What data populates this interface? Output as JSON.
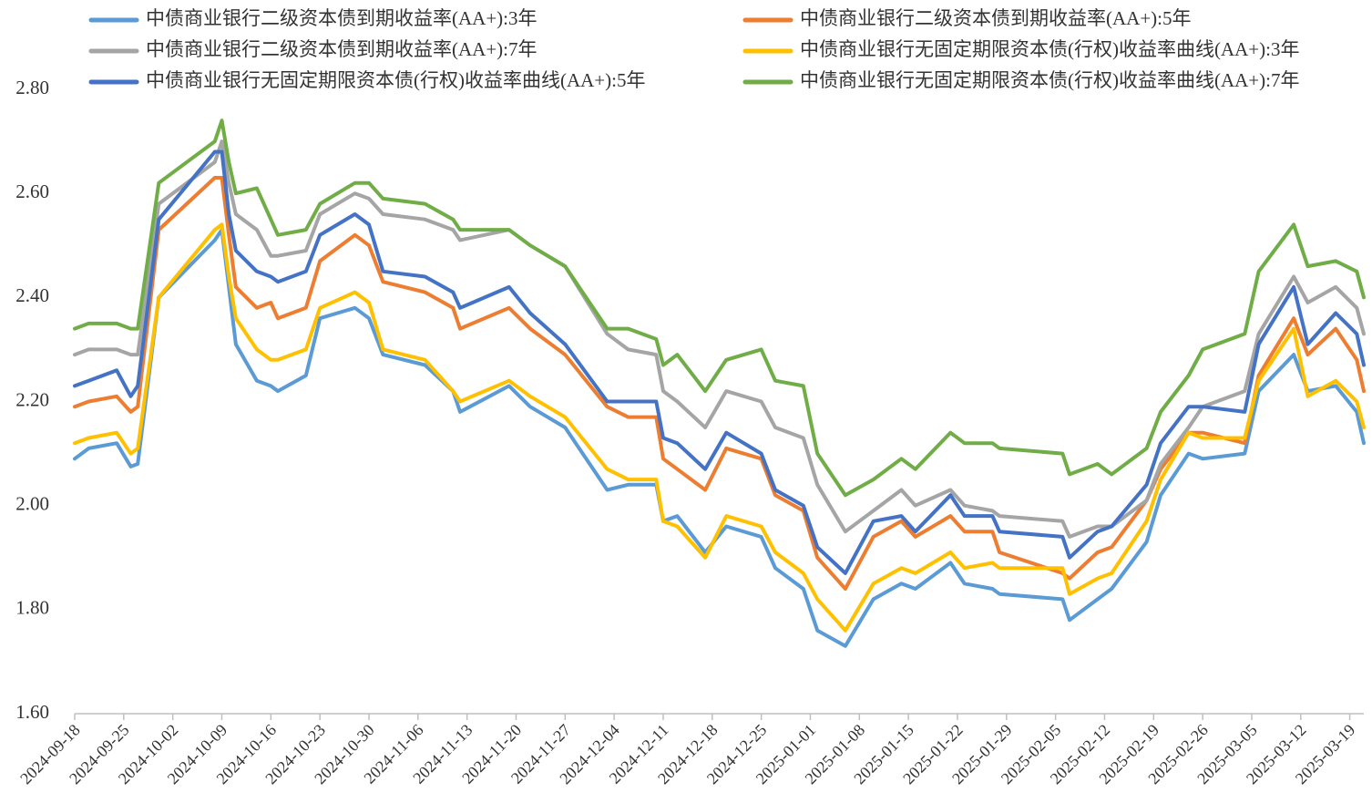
{
  "chart_data": {
    "type": "line",
    "x": [
      "2024-09-18",
      "2024-09-20",
      "2024-09-24",
      "2024-09-26",
      "2024-09-27",
      "2024-09-30",
      "2024-10-08",
      "2024-10-09",
      "2024-10-10",
      "2024-10-11",
      "2024-10-14",
      "2024-10-16",
      "2024-10-17",
      "2024-10-21",
      "2024-10-23",
      "2024-10-28",
      "2024-10-30",
      "2024-11-01",
      "2024-11-07",
      "2024-11-11",
      "2024-11-12",
      "2024-11-19",
      "2024-11-22",
      "2024-11-27",
      "2024-12-03",
      "2024-12-06",
      "2024-12-10",
      "2024-12-11",
      "2024-12-13",
      "2024-12-17",
      "2024-12-20",
      "2024-12-25",
      "2024-12-27",
      "2024-12-31",
      "2025-01-02",
      "2025-01-06",
      "2025-01-10",
      "2025-01-14",
      "2025-01-16",
      "2025-01-21",
      "2025-01-23",
      "2025-01-27",
      "2025-01-28",
      "2025-02-06",
      "2025-02-07",
      "2025-02-11",
      "2025-02-13",
      "2025-02-18",
      "2025-02-20",
      "2025-02-24",
      "2025-02-26",
      "2025-03-04",
      "2025-03-06",
      "2025-03-11",
      "2025-03-13",
      "2025-03-17",
      "2025-03-20",
      "2025-03-21"
    ],
    "series": [
      {
        "name": "中债商业银行二级资本债到期收益率(AA+):3年",
        "color": "#5b9bd5",
        "values": [
          2.09,
          2.11,
          2.12,
          2.075,
          2.08,
          2.4,
          2.51,
          2.53,
          2.42,
          2.31,
          2.24,
          2.23,
          2.22,
          2.25,
          2.36,
          2.38,
          2.36,
          2.29,
          2.27,
          2.22,
          2.18,
          2.23,
          2.19,
          2.15,
          2.03,
          2.04,
          2.04,
          1.97,
          1.98,
          1.91,
          1.96,
          1.94,
          1.88,
          1.84,
          1.76,
          1.73,
          1.82,
          1.85,
          1.84,
          1.89,
          1.85,
          1.84,
          1.83,
          1.82,
          1.78,
          1.82,
          1.84,
          1.93,
          2.02,
          2.1,
          2.09,
          2.1,
          2.22,
          2.29,
          2.22,
          2.23,
          2.18,
          2.12
        ]
      },
      {
        "name": "中债商业银行二级资本债到期收益率(AA+):5年",
        "color": "#ed7d31",
        "values": [
          2.19,
          2.2,
          2.21,
          2.18,
          2.19,
          2.53,
          2.63,
          2.63,
          2.52,
          2.42,
          2.38,
          2.39,
          2.36,
          2.38,
          2.47,
          2.52,
          2.5,
          2.43,
          2.41,
          2.38,
          2.34,
          2.38,
          2.34,
          2.29,
          2.19,
          2.17,
          2.17,
          2.09,
          2.07,
          2.03,
          2.11,
          2.09,
          2.02,
          1.99,
          1.9,
          1.84,
          1.94,
          1.97,
          1.94,
          1.98,
          1.95,
          1.95,
          1.91,
          1.87,
          1.86,
          1.91,
          1.92,
          2.01,
          2.07,
          2.14,
          2.14,
          2.12,
          2.25,
          2.36,
          2.29,
          2.34,
          2.28,
          2.22
        ]
      },
      {
        "name": "中债商业银行二级资本债到期收益率(AA+):7年",
        "color": "#a5a5a5",
        "values": [
          2.29,
          2.3,
          2.3,
          2.29,
          2.29,
          2.58,
          2.66,
          2.7,
          2.62,
          2.56,
          2.53,
          2.48,
          2.48,
          2.49,
          2.56,
          2.6,
          2.59,
          2.56,
          2.55,
          2.53,
          2.51,
          2.53,
          2.5,
          2.46,
          2.33,
          2.3,
          2.29,
          2.22,
          2.2,
          2.15,
          2.22,
          2.2,
          2.15,
          2.13,
          2.04,
          1.95,
          1.99,
          2.03,
          2.0,
          2.03,
          2.0,
          1.99,
          1.98,
          1.97,
          1.94,
          1.96,
          1.96,
          2.01,
          2.08,
          2.15,
          2.19,
          2.22,
          2.33,
          2.44,
          2.39,
          2.42,
          2.38,
          2.33
        ]
      },
      {
        "name": "中债商业银行无固定期限资本债(行权)收益率曲线(AA+):3年",
        "color": "#ffc000",
        "values": [
          2.12,
          2.13,
          2.14,
          2.1,
          2.11,
          2.4,
          2.53,
          2.54,
          2.44,
          2.36,
          2.3,
          2.28,
          2.28,
          2.3,
          2.38,
          2.41,
          2.39,
          2.3,
          2.28,
          2.22,
          2.2,
          2.24,
          2.21,
          2.17,
          2.07,
          2.05,
          2.05,
          1.97,
          1.96,
          1.9,
          1.98,
          1.96,
          1.91,
          1.87,
          1.82,
          1.76,
          1.85,
          1.88,
          1.87,
          1.91,
          1.88,
          1.89,
          1.88,
          1.88,
          1.83,
          1.86,
          1.87,
          1.97,
          2.05,
          2.14,
          2.13,
          2.13,
          2.24,
          2.34,
          2.21,
          2.24,
          2.2,
          2.15
        ]
      },
      {
        "name": "中债商业银行无固定期限资本债(行权)收益率曲线(AA+):5年",
        "color": "#4472c4",
        "values": [
          2.23,
          2.24,
          2.26,
          2.21,
          2.23,
          2.55,
          2.68,
          2.68,
          2.56,
          2.49,
          2.45,
          2.44,
          2.43,
          2.45,
          2.52,
          2.56,
          2.54,
          2.45,
          2.44,
          2.41,
          2.38,
          2.42,
          2.37,
          2.31,
          2.2,
          2.2,
          2.2,
          2.13,
          2.12,
          2.07,
          2.14,
          2.1,
          2.03,
          2.0,
          1.92,
          1.87,
          1.97,
          1.98,
          1.95,
          2.02,
          1.98,
          1.98,
          1.95,
          1.94,
          1.9,
          1.95,
          1.96,
          2.04,
          2.12,
          2.19,
          2.19,
          2.18,
          2.31,
          2.42,
          2.31,
          2.37,
          2.33,
          2.27
        ]
      },
      {
        "name": "中债商业银行无固定期限资本债(行权)收益率曲线(AA+):7年",
        "color": "#70ad47",
        "values": [
          2.34,
          2.35,
          2.35,
          2.34,
          2.34,
          2.62,
          2.7,
          2.74,
          2.66,
          2.6,
          2.61,
          2.55,
          2.52,
          2.53,
          2.58,
          2.62,
          2.62,
          2.59,
          2.58,
          2.55,
          2.53,
          2.53,
          2.5,
          2.46,
          2.34,
          2.34,
          2.32,
          2.27,
          2.29,
          2.22,
          2.28,
          2.3,
          2.24,
          2.23,
          2.1,
          2.02,
          2.05,
          2.09,
          2.07,
          2.14,
          2.12,
          2.12,
          2.11,
          2.1,
          2.06,
          2.08,
          2.06,
          2.11,
          2.18,
          2.25,
          2.3,
          2.33,
          2.45,
          2.54,
          2.46,
          2.47,
          2.45,
          2.4
        ]
      }
    ],
    "xlim": [
      "2024-09-18",
      "2025-03-21"
    ],
    "xticks": [
      "2024-09-18",
      "2024-09-25",
      "2024-10-02",
      "2024-10-09",
      "2024-10-16",
      "2024-10-23",
      "2024-10-30",
      "2024-11-06",
      "2024-11-13",
      "2024-11-20",
      "2024-11-27",
      "2024-12-04",
      "2024-12-11",
      "2024-12-18",
      "2024-12-25",
      "2025-01-01",
      "2025-01-08",
      "2025-01-15",
      "2025-01-22",
      "2025-01-29",
      "2025-02-05",
      "2025-02-12",
      "2025-02-19",
      "2025-02-26",
      "2025-03-05",
      "2025-03-12",
      "2025-03-19"
    ],
    "ylim": [
      1.6,
      2.8
    ],
    "yticks": [
      {
        "value": 1.6,
        "label": "1.60"
      },
      {
        "value": 1.8,
        "label": "1.80"
      },
      {
        "value": 2.0,
        "label": "2.00"
      },
      {
        "value": 2.2,
        "label": "2.20"
      },
      {
        "value": 2.4,
        "label": "2.40"
      },
      {
        "value": 2.6,
        "label": "2.60"
      },
      {
        "value": 2.8,
        "label": "2.80"
      }
    ],
    "grid": false,
    "legend": "top"
  }
}
